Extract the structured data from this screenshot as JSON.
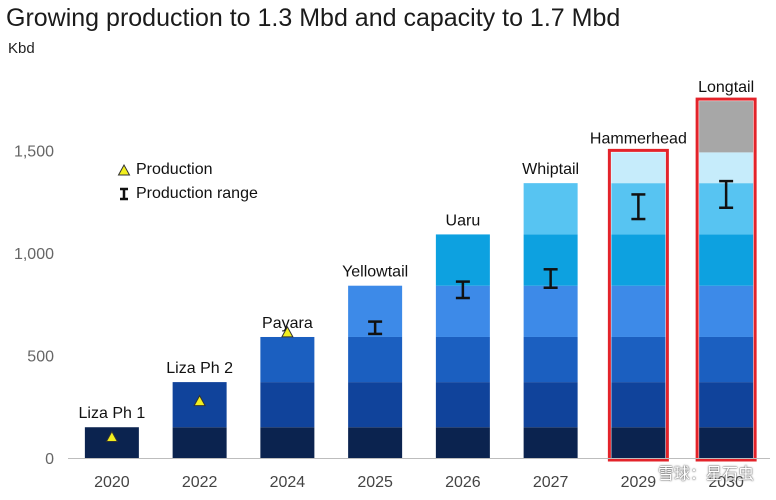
{
  "header": {
    "title": "Growing production to 1.3 Mbd and capacity to 1.7 Mbd",
    "unit": "Kbd"
  },
  "legend": {
    "production": "Production",
    "range": "Production range"
  },
  "watermark": "雪球：星石虫",
  "colors": {
    "axis": "#bdbdbd",
    "tick_text": "#666666",
    "production_marker": "#f2ef1e",
    "range_marker": "#111111",
    "highlight_border": "#e3232a",
    "segments": [
      "#0b234f",
      "#10439b",
      "#1b5fc0",
      "#3d8ae8",
      "#0da1e0",
      "#57c4f2",
      "#c6ecfb",
      "#a7a7a7",
      "#7c7c7c"
    ]
  },
  "chart_data": {
    "type": "bar",
    "subtype": "stacked-capacity",
    "categories": [
      "2020",
      "2022",
      "2024",
      "2025",
      "2026",
      "2027",
      "2029",
      "2030"
    ],
    "yticks": [
      0,
      500,
      1000,
      1500
    ],
    "ylim": [
      0,
      1760
    ],
    "ylabel": "Kbd",
    "bars": [
      {
        "label": "Liza Ph 1",
        "segments": [
          150
        ],
        "production": 100,
        "highlight": false
      },
      {
        "label": "Liza Ph 2",
        "segments": [
          150,
          220
        ],
        "production": 275,
        "highlight": false
      },
      {
        "label": "Payara",
        "segments": [
          150,
          220,
          220
        ],
        "production": 610,
        "highlight": false
      },
      {
        "label": "Yellowtail",
        "segments": [
          150,
          220,
          220,
          250
        ],
        "range": [
          605,
          665
        ],
        "highlight": false
      },
      {
        "label": "Uaru",
        "segments": [
          150,
          220,
          220,
          250,
          250
        ],
        "range": [
          780,
          860
        ],
        "highlight": false
      },
      {
        "label": "Whiptail",
        "segments": [
          150,
          220,
          220,
          250,
          250,
          250
        ],
        "range": [
          830,
          920
        ],
        "highlight": false
      },
      {
        "label": "Hammerhead",
        "segments": [
          150,
          220,
          220,
          250,
          250,
          250,
          150
        ],
        "range": [
          1165,
          1285
        ],
        "highlight": true
      },
      {
        "label": "Longtail",
        "segments": [
          150,
          220,
          220,
          250,
          250,
          250,
          150,
          250
        ],
        "range": [
          1220,
          1350
        ],
        "highlight": true
      }
    ]
  }
}
